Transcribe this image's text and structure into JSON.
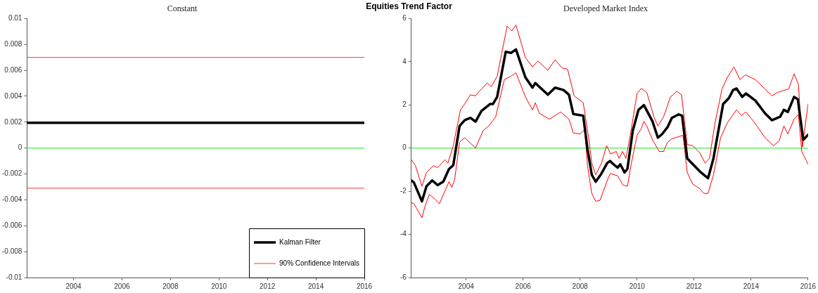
{
  "chart_data": [
    {
      "type": "line",
      "title": "Constant",
      "annotations": [
        "Equities Trend Factor"
      ],
      "xlim": [
        2002.08,
        2016
      ],
      "xticks": [
        2004,
        2006,
        2008,
        2010,
        2012,
        2014,
        2016
      ],
      "ylim": [
        -0.01,
        0.01
      ],
      "yticks": [
        -0.01,
        -0.008,
        -0.006,
        -0.004,
        -0.002,
        0,
        0.002,
        0.004,
        0.006,
        0.008,
        0.01
      ],
      "grid": false,
      "legend": "bottom right",
      "marker": "none",
      "ref_lines": [
        {
          "axis": "y",
          "value": 0,
          "color": "#66ee66"
        }
      ],
      "series": [
        {
          "name": "Kalman Filter",
          "color": "#000000",
          "x": [
            2002.08,
            2016
          ],
          "values": [
            0.00195,
            0.00195
          ]
        },
        {
          "name": "90% Confidence Intervals",
          "color": "#ff3333",
          "x": [
            2002.08,
            2016
          ],
          "values": [
            0.007,
            0.007
          ]
        },
        {
          "color": "#ff3333",
          "x": [
            2002.08,
            2016
          ],
          "values": [
            -0.0031,
            -0.0031
          ]
        }
      ]
    },
    {
      "type": "line",
      "title": "Developed Market Index",
      "xlim": [
        2002.08,
        2016
      ],
      "xticks": [
        2004,
        2006,
        2008,
        2010,
        2012,
        2014,
        2016
      ],
      "ylim": [
        -6,
        6
      ],
      "yticks": [
        -6,
        -4,
        -2,
        0,
        2,
        4,
        6
      ],
      "grid": false,
      "legend": false,
      "marker": "none",
      "ref_lines": [
        {
          "axis": "y",
          "value": 0,
          "color": "#66ee66"
        }
      ],
      "series": [
        {
          "color": "#ff0000",
          "x": [
            2002.08,
            2002.22,
            2002.45,
            2002.61,
            2002.86,
            2003.0,
            2003.26,
            2003.36,
            2003.55,
            2003.8,
            2003.95,
            2004.15,
            2004.33,
            2004.54,
            2004.74,
            2004.89,
            2005.09,
            2005.44,
            2005.6,
            2005.75,
            2006.08,
            2006.33,
            2006.52,
            2006.87,
            2007.12,
            2007.37,
            2007.56,
            2007.79,
            2008.11,
            2008.31,
            2008.41,
            2008.55,
            2008.75,
            2008.93,
            2009.07,
            2009.27,
            2009.37,
            2009.49,
            2009.61,
            2009.76,
            2010.0,
            2010.15,
            2010.34,
            2010.59,
            2010.73,
            2010.93,
            2011.17,
            2011.27,
            2011.39,
            2011.56,
            2011.76,
            2011.95,
            2012.2,
            2012.39,
            2012.54,
            2012.73,
            2012.98,
            2013.17,
            2013.4,
            2013.61,
            2013.8,
            2014.15,
            2014.49,
            2014.73,
            2014.93,
            2015.32,
            2015.51,
            2015.66,
            2015.8,
            2016.0
          ],
          "values": [
            -0.54,
            -0.81,
            -1.77,
            -1.13,
            -0.81,
            -0.91,
            -0.54,
            -0.7,
            0.11,
            1.77,
            2.04,
            2.47,
            2.42,
            2.74,
            3.01,
            2.85,
            3.33,
            5.65,
            5.43,
            5.7,
            4.19,
            3.76,
            4.03,
            3.6,
            4.09,
            3.71,
            3.66,
            2.42,
            2.1,
            0.38,
            -0.7,
            -1.24,
            -0.7,
            0.11,
            -0.27,
            -0.16,
            -0.48,
            -0.16,
            -0.48,
            0.59,
            2.53,
            2.76,
            2.58,
            1.45,
            1.02,
            1.45,
            2.37,
            2.47,
            2.63,
            2.47,
            0.16,
            0.11,
            -0.22,
            -0.7,
            -0.48,
            1.13,
            2.74,
            3.28,
            3.76,
            3.17,
            3.39,
            3.17,
            2.74,
            2.42,
            2.58,
            2.74,
            3.44,
            2.96,
            0.05,
            2.04
          ]
        },
        {
          "color": "#ff0000",
          "x": [
            2002.08,
            2002.17,
            2002.45,
            2002.56,
            2002.71,
            2002.86,
            2003.06,
            2003.4,
            2003.5,
            2003.6,
            2003.77,
            2003.95,
            2004.33,
            2004.6,
            2004.79,
            2005.04,
            2005.34,
            2005.58,
            2005.75,
            2006.08,
            2006.33,
            2006.43,
            2006.57,
            2006.92,
            2007.32,
            2007.61,
            2007.76,
            2008.0,
            2008.16,
            2008.26,
            2008.41,
            2008.55,
            2008.7,
            2009.0,
            2009.07,
            2009.32,
            2009.51,
            2009.66,
            2009.8,
            2010.0,
            2010.15,
            2010.24,
            2010.34,
            2010.54,
            2010.78,
            2010.93,
            2011.07,
            2011.22,
            2011.61,
            2011.76,
            2011.95,
            2012.2,
            2012.34,
            2012.49,
            2012.68,
            2012.93,
            2013.17,
            2013.49,
            2013.66,
            2013.82,
            2014.15,
            2014.49,
            2014.78,
            2014.98,
            2015.15,
            2015.29,
            2015.51,
            2015.66,
            2015.78,
            2016.0
          ],
          "values": [
            -2.53,
            -2.58,
            -3.23,
            -2.69,
            -2.15,
            -2.31,
            -2.58,
            -1.56,
            -1.83,
            -1.45,
            0.27,
            0.48,
            0.0,
            0.81,
            1.02,
            1.45,
            3.17,
            3.33,
            3.49,
            2.37,
            1.77,
            2.1,
            1.61,
            1.34,
            1.67,
            1.34,
            0.7,
            0.65,
            0.86,
            -0.81,
            -2.1,
            -2.47,
            -2.42,
            -1.34,
            -1.18,
            -1.29,
            -1.72,
            -1.77,
            -0.7,
            0.59,
            0.91,
            1.24,
            1.02,
            0.38,
            -0.16,
            -0.16,
            0.27,
            0.43,
            0.59,
            -1.13,
            -1.67,
            -1.88,
            -2.1,
            -2.1,
            -1.24,
            0.48,
            1.18,
            1.77,
            1.51,
            1.67,
            1.13,
            0.48,
            0.11,
            0.32,
            1.02,
            0.65,
            1.34,
            1.56,
            -0.16,
            -0.75
          ]
        },
        {
          "color": "#000000",
          "x": [
            2002.08,
            2002.17,
            2002.45,
            2002.61,
            2002.81,
            2003.0,
            2003.2,
            2003.4,
            2003.55,
            2003.77,
            2003.95,
            2004.15,
            2004.33,
            2004.54,
            2004.84,
            2004.94,
            2005.09,
            2005.39,
            2005.58,
            2005.75,
            2006.08,
            2006.33,
            2006.43,
            2006.87,
            2007.12,
            2007.42,
            2007.61,
            2007.76,
            2008.11,
            2008.26,
            2008.41,
            2008.55,
            2008.75,
            2008.95,
            2009.05,
            2009.17,
            2009.32,
            2009.41,
            2009.56,
            2009.66,
            2009.85,
            2010.05,
            2010.24,
            2010.54,
            2010.73,
            2010.88,
            2011.07,
            2011.22,
            2011.46,
            2011.58,
            2011.76,
            2012.0,
            2012.24,
            2012.49,
            2012.68,
            2013.02,
            2013.22,
            2013.37,
            2013.49,
            2013.69,
            2013.82,
            2014.15,
            2014.49,
            2014.73,
            2015.02,
            2015.15,
            2015.29,
            2015.51,
            2015.64,
            2015.83,
            2016.0
          ],
          "values": [
            -1.5,
            -1.6,
            -2.47,
            -1.77,
            -1.5,
            -1.72,
            -1.56,
            -0.97,
            -0.8,
            1.02,
            1.29,
            1.4,
            1.22,
            1.72,
            2.04,
            2.04,
            2.37,
            4.46,
            4.41,
            4.57,
            3.28,
            2.8,
            3.01,
            2.47,
            2.8,
            2.69,
            2.47,
            1.58,
            1.5,
            -0.05,
            -1.24,
            -1.56,
            -1.18,
            -0.7,
            -0.6,
            -0.75,
            -0.91,
            -0.75,
            -1.13,
            -0.97,
            0.81,
            1.77,
            1.99,
            1.24,
            0.48,
            0.65,
            0.97,
            1.4,
            1.56,
            1.5,
            -0.48,
            -0.81,
            -1.13,
            -1.4,
            -0.48,
            2.04,
            2.31,
            2.69,
            2.76,
            2.37,
            2.53,
            2.2,
            1.61,
            1.29,
            1.45,
            1.77,
            1.67,
            2.37,
            2.26,
            0.38,
            0.61
          ]
        }
      ]
    }
  ]
}
